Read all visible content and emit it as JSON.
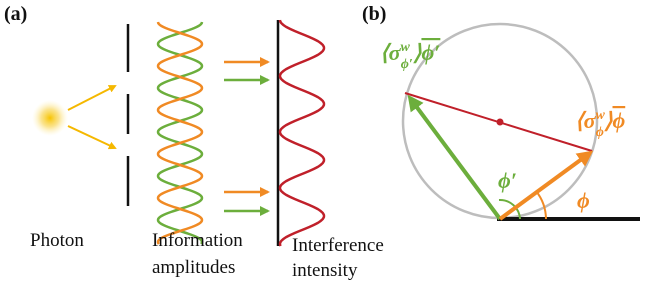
{
  "panel_a": {
    "label": "(a)",
    "photon": "Photon",
    "amplitudes": [
      "Information",
      "amplitudes"
    ],
    "intensity": [
      "Interference",
      "intensity"
    ]
  },
  "panel_b": {
    "label": "(b)",
    "vector_prime": {
      "open": "⟨",
      "sigma": "σ",
      "sup": "w",
      "sub": "ϕ′",
      "close": "⟩",
      "vec": "ϕ′"
    },
    "vector": {
      "open": "⟨",
      "sigma": "σ",
      "sup": "w",
      "sub": "ϕ",
      "close": "⟩",
      "vec": "ϕ"
    },
    "angle_prime": "ϕ′",
    "angle": "ϕ"
  }
}
